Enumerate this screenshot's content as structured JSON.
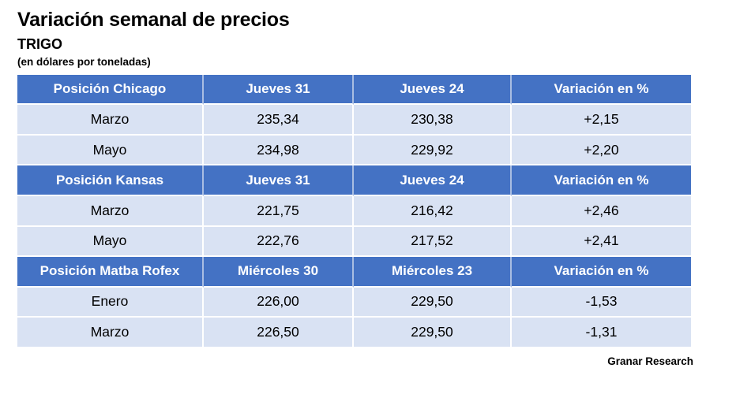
{
  "header": {
    "title": "Variación semanal de precios",
    "subtitle": "TRIGO",
    "unit_note": "(en dólares por toneladas)"
  },
  "chart_data": {
    "type": "table",
    "title": "Variación semanal de precios",
    "subtitle": "TRIGO",
    "unit": "en dólares por toneladas",
    "sections": [
      {
        "header": [
          "Posición Chicago",
          "Jueves 31",
          "Jueves 24",
          "Variación en %"
        ],
        "rows": [
          [
            "Marzo",
            "235,34",
            "230,38",
            "+2,15"
          ],
          [
            "Mayo",
            "234,98",
            "229,92",
            "+2,20"
          ]
        ]
      },
      {
        "header": [
          "Posición Kansas",
          "Jueves 31",
          "Jueves 24",
          "Variación en %"
        ],
        "rows": [
          [
            "Marzo",
            "221,75",
            "216,42",
            "+2,46"
          ],
          [
            "Mayo",
            "222,76",
            "217,52",
            "+2,41"
          ]
        ]
      },
      {
        "header": [
          "Posición Matba Rofex",
          "Miércoles 30",
          "Miércoles 23",
          "Variación en %"
        ],
        "rows": [
          [
            "Enero",
            "226,00",
            "229,50",
            "-1,53"
          ],
          [
            "Marzo",
            "226,50",
            "229,50",
            "-1,31"
          ]
        ]
      }
    ]
  },
  "footer": {
    "source": "Granar Research"
  },
  "colors": {
    "header_bg": "#4472C4",
    "row_bg": "#D9E2F3",
    "header_text": "#FFFFFF",
    "body_text": "#000000",
    "page_bg": "#FFFFFF"
  }
}
